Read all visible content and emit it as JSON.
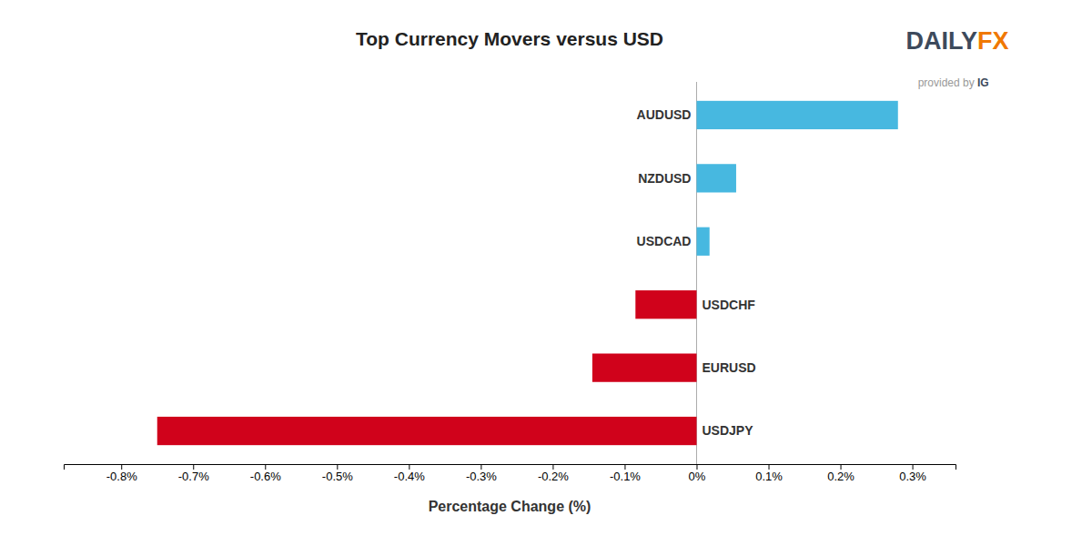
{
  "chart_data": {
    "type": "bar",
    "orientation": "horizontal",
    "title": "Top Currency Movers versus USD",
    "x_label": "Percentage Change (%)",
    "categories": [
      "AUDUSD",
      "NZDUSD",
      "USDCAD",
      "USDCHF",
      "EURUSD",
      "USDJPY"
    ],
    "values": [
      0.28,
      0.055,
      0.018,
      -0.085,
      -0.145,
      -0.75
    ],
    "colors": [
      "#47b8e0",
      "#47b8e0",
      "#47b8e0",
      "#d0021b",
      "#d0021b",
      "#d0021b"
    ],
    "xlim": [
      -0.88,
      0.36
    ],
    "xticks": [
      {
        "value": -0.8,
        "label": "-0.8%"
      },
      {
        "value": -0.7,
        "label": "-0.7%"
      },
      {
        "value": -0.6,
        "label": "-0.6%"
      },
      {
        "value": -0.5,
        "label": "-0.5%"
      },
      {
        "value": -0.4,
        "label": "-0.4%"
      },
      {
        "value": -0.3,
        "label": "-0.3%"
      },
      {
        "value": -0.2,
        "label": "-0.2%"
      },
      {
        "value": -0.1,
        "label": "-0.1%"
      },
      {
        "value": 0.0,
        "label": "0%"
      },
      {
        "value": 0.1,
        "label": "0.1%"
      },
      {
        "value": 0.2,
        "label": "0.2%"
      },
      {
        "value": 0.3,
        "label": "0.3%"
      }
    ],
    "grid": false,
    "annotations": [
      {
        "text": "DAILY",
        "color": "#3d4a5c"
      },
      {
        "text": "FX",
        "color": "#f07800"
      },
      {
        "text": "provided by ",
        "color": "#999999"
      },
      {
        "text": "IG",
        "color": "#3d4a5c"
      }
    ]
  }
}
